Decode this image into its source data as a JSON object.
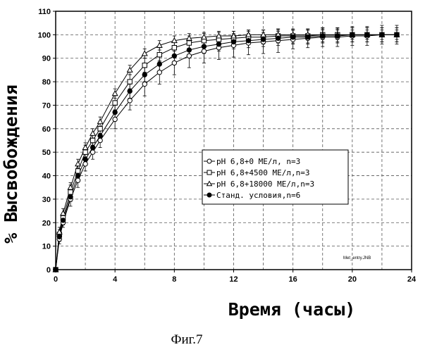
{
  "chart_data": {
    "type": "line",
    "title": "",
    "xlabel": "Время (часы)",
    "ylabel": "% Высвобождения",
    "xlim": [
      0,
      24
    ],
    "ylim": [
      0,
      110
    ],
    "x_ticks": [
      0,
      4,
      8,
      12,
      16,
      20,
      24
    ],
    "y_ticks": [
      0,
      10,
      20,
      30,
      40,
      50,
      60,
      70,
      80,
      90,
      100,
      110
    ],
    "grid": "dashed",
    "legend_position": "center-right",
    "series": [
      {
        "name": "pH 6,8+0 МЕ/л, n=3",
        "marker": "circle-open",
        "x": [
          0,
          0.25,
          0.5,
          1,
          1.5,
          2,
          2.5,
          3,
          4,
          5,
          6,
          7,
          8,
          9,
          10,
          11,
          12,
          13,
          14,
          15,
          16,
          17,
          18,
          19,
          20,
          21,
          22,
          23
        ],
        "y": [
          0,
          13,
          20,
          30,
          38,
          45,
          50,
          55,
          64,
          72,
          79,
          84,
          88,
          91,
          93,
          94.5,
          95.5,
          96.5,
          97,
          97.5,
          98,
          98.5,
          99,
          99,
          99.5,
          99.5,
          100,
          100
        ],
        "err": [
          0,
          2,
          2,
          3,
          3,
          3,
          3,
          3,
          4,
          4,
          5,
          5,
          5,
          5,
          5,
          5,
          5,
          5,
          5,
          5,
          4,
          4,
          4,
          4,
          4,
          4,
          4,
          4
        ]
      },
      {
        "name": "pH 6,8+4500 МЕ/л,n=3",
        "marker": "square-open",
        "x": [
          0,
          0.25,
          0.5,
          1,
          1.5,
          2,
          2.5,
          3,
          4,
          5,
          6,
          7,
          8,
          9,
          10,
          11,
          12,
          13,
          14,
          15,
          16,
          17,
          18,
          19,
          20,
          21,
          22,
          23
        ],
        "y": [
          0,
          15,
          22,
          33,
          42,
          50,
          55,
          60,
          71,
          80,
          87,
          91.5,
          94.5,
          96.5,
          97.5,
          98,
          98.5,
          99,
          99,
          99.5,
          99.5,
          99.5,
          100,
          100,
          100,
          100,
          100,
          100
        ],
        "err": [
          0,
          2,
          2,
          3,
          3,
          3,
          3,
          3,
          3,
          3,
          3,
          3,
          3,
          3,
          3,
          3,
          3,
          3,
          3,
          3,
          3,
          3,
          3,
          3,
          3,
          3,
          3,
          3
        ]
      },
      {
        "name": "pH 6,8+18000 МЕ/л,n=3",
        "marker": "triangle-open",
        "x": [
          0,
          0.25,
          0.5,
          1,
          1.5,
          2,
          2.5,
          3,
          4,
          5,
          6,
          7,
          8,
          9,
          10,
          11,
          12,
          13,
          14,
          15,
          16,
          17,
          18,
          19,
          20,
          21,
          22,
          23
        ],
        "y": [
          0,
          16,
          24,
          35,
          45,
          52,
          58,
          63,
          75,
          85,
          92,
          95.5,
          97.5,
          98.5,
          99,
          99.5,
          99.5,
          100,
          100,
          100,
          100,
          100,
          100,
          100,
          100,
          100,
          100,
          100
        ],
        "err": [
          0,
          2,
          2,
          2,
          2,
          2,
          2,
          2,
          2,
          2,
          2,
          2,
          2,
          2,
          2,
          2,
          2,
          2,
          2,
          2,
          2,
          2,
          2,
          2,
          2,
          2,
          2,
          2
        ]
      },
      {
        "name": "Станд. условия,n=6",
        "marker": "circle-filled",
        "x": [
          0,
          0.25,
          0.5,
          1,
          1.5,
          2,
          2.5,
          3,
          4,
          5,
          6,
          7,
          8,
          9,
          10,
          11,
          12,
          13,
          14,
          15,
          16,
          17,
          18,
          19,
          20,
          21,
          22,
          23
        ],
        "y": [
          0,
          14,
          21,
          31,
          40,
          47,
          52,
          57,
          67,
          76,
          83,
          87.5,
          91,
          93.5,
          95,
          96,
          97,
          97.5,
          98,
          98.5,
          99,
          99,
          99.5,
          99.5,
          100,
          100,
          100,
          100
        ],
        "err": [
          0,
          2,
          2,
          2,
          2,
          2,
          2,
          2,
          3,
          3,
          3,
          3,
          3,
          3,
          3,
          3,
          3,
          3,
          3,
          3,
          3,
          3,
          3,
          3,
          3,
          3,
          3,
          3
        ]
      }
    ],
    "annotation": "Met_entry.JNB",
    "caption": "Фиг.7"
  }
}
